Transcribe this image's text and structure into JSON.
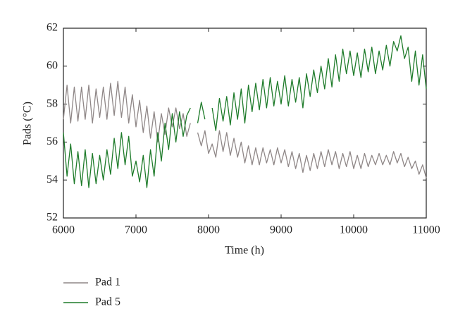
{
  "chart_data": {
    "type": "line",
    "x_label": "Time (h)",
    "y_label": "Pads (°C)",
    "xlim": [
      6000,
      11000
    ],
    "xticks": [
      6000,
      7000,
      8000,
      9000,
      10000,
      11000
    ],
    "ylim": [
      52,
      62
    ],
    "yticks": [
      52,
      54,
      56,
      58,
      60,
      62
    ],
    "grid": false,
    "legend": "below-left",
    "x": [
      6000,
      6050,
      6100,
      6150,
      6200,
      6250,
      6300,
      6350,
      6400,
      6450,
      6500,
      6550,
      6600,
      6650,
      6700,
      6750,
      6800,
      6850,
      6900,
      6950,
      7000,
      7050,
      7100,
      7150,
      7200,
      7250,
      7300,
      7350,
      7400,
      7450,
      7500,
      7550,
      7600,
      7650,
      7700,
      7750,
      7800,
      7850,
      7900,
      7950,
      8000,
      8050,
      8100,
      8150,
      8200,
      8250,
      8300,
      8350,
      8400,
      8450,
      8500,
      8550,
      8600,
      8650,
      8700,
      8750,
      8800,
      8850,
      8900,
      8950,
      9000,
      9050,
      9100,
      9150,
      9200,
      9250,
      9300,
      9350,
      9400,
      9450,
      9500,
      9550,
      9600,
      9650,
      9700,
      9750,
      9800,
      9850,
      9900,
      9950,
      10000,
      10050,
      10100,
      10150,
      10200,
      10250,
      10300,
      10350,
      10400,
      10450,
      10500,
      10550,
      10600,
      10650,
      10700,
      10750,
      10800,
      10850,
      10900,
      10950,
      11000
    ],
    "series": [
      {
        "name": "Pad 1",
        "color": "#8f8787",
        "values": [
          57.2,
          59.0,
          57.0,
          58.9,
          57.1,
          58.9,
          57.2,
          59.0,
          57.0,
          58.8,
          57.3,
          58.9,
          57.2,
          59.1,
          57.4,
          59.2,
          57.3,
          58.9,
          57.0,
          58.5,
          56.8,
          58.2,
          56.5,
          57.9,
          56.2,
          57.6,
          56.0,
          57.5,
          56.4,
          57.8,
          56.8,
          57.8,
          56.7,
          57.5,
          56.3,
          57.0,
          null,
          56.5,
          55.8,
          56.6,
          55.4,
          55.9,
          55.2,
          56.6,
          55.5,
          56.5,
          55.3,
          56.2,
          55.2,
          56.0,
          54.9,
          55.8,
          54.8,
          55.7,
          54.8,
          55.7,
          54.9,
          55.6,
          54.8,
          55.7,
          54.9,
          55.6,
          54.7,
          55.5,
          54.6,
          55.4,
          54.4,
          55.3,
          54.5,
          55.4,
          54.6,
          55.5,
          54.7,
          55.6,
          54.8,
          55.5,
          54.6,
          55.4,
          54.7,
          55.5,
          54.6,
          55.3,
          54.6,
          55.4,
          54.7,
          55.3,
          54.8,
          55.4,
          54.8,
          55.3,
          54.8,
          55.5,
          54.9,
          55.4,
          54.7,
          55.2,
          54.6,
          55.0,
          54.3,
          54.8,
          54.1
        ]
      },
      {
        "name": "Pad 5",
        "color": "#1e7b2a",
        "values": [
          56.5,
          54.2,
          55.9,
          53.8,
          55.5,
          53.7,
          55.6,
          53.6,
          55.4,
          53.8,
          55.3,
          54.0,
          55.6,
          54.3,
          56.2,
          54.6,
          56.5,
          54.8,
          56.3,
          54.2,
          55.0,
          53.9,
          55.3,
          53.6,
          55.6,
          54.2,
          56.5,
          55.0,
          57.0,
          55.6,
          57.5,
          56.0,
          57.6,
          56.3,
          57.4,
          57.8,
          null,
          57.0,
          58.1,
          57.2,
          null,
          57.8,
          56.6,
          58.3,
          57.1,
          58.4,
          56.9,
          58.6,
          57.2,
          58.8,
          57.0,
          59.0,
          57.6,
          59.1,
          57.7,
          59.3,
          57.8,
          59.4,
          57.9,
          59.2,
          58.0,
          59.5,
          57.9,
          59.3,
          58.1,
          59.4,
          57.8,
          59.6,
          58.4,
          59.8,
          58.6,
          60.0,
          58.8,
          60.4,
          58.9,
          60.6,
          59.2,
          60.9,
          59.6,
          60.8,
          59.5,
          60.7,
          59.4,
          60.9,
          59.7,
          61.0,
          59.6,
          60.8,
          59.8,
          61.1,
          60.0,
          61.3,
          60.8,
          61.6,
          60.4,
          61.0,
          59.2,
          60.8,
          59.0,
          60.6,
          58.8
        ]
      }
    ]
  }
}
